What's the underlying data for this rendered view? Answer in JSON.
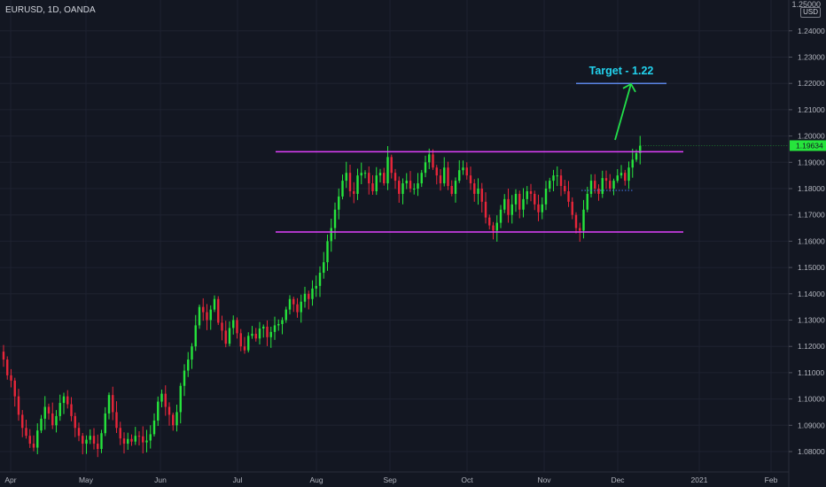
{
  "header": {
    "symbol": "EURUSD, 1D, OANDA"
  },
  "price_axis": {
    "top_value": "1.25000",
    "currency": "USD",
    "last_price": "1.19634"
  },
  "colors": {
    "background": "#131722",
    "up": "#26e43c",
    "down": "#e8263a",
    "range_line": "#e040fb",
    "target_line": "#5b86e5",
    "target_text": "#22d3ee",
    "arrow": "#22e04a",
    "grid": "#1e2230"
  },
  "annotation": {
    "target_label": "Target - 1.22",
    "target_price": 1.22
  },
  "chart_data": {
    "type": "candlestick",
    "title": "EURUSD, 1D, OANDA",
    "y_ticks": [
      "1.24000",
      "1.23000",
      "1.22000",
      "1.21000",
      "1.20000",
      "1.19000",
      "1.18000",
      "1.17000",
      "1.16000",
      "1.15000",
      "1.14000",
      "1.13000",
      "1.12000",
      "1.11000",
      "1.10000",
      "1.09000",
      "1.08000"
    ],
    "x_ticks": [
      "Apr",
      "May",
      "Jun",
      "Jul",
      "Aug",
      "Sep",
      "Oct",
      "Nov",
      "Dec",
      "2021",
      "Feb"
    ],
    "ylim": [
      1.0755,
      1.25
    ],
    "last_price": 1.19634,
    "resistance": 1.194,
    "support": 1.1635,
    "target": 1.22,
    "close": [
      1.115,
      1.109,
      1.107,
      1.101,
      1.094,
      1.089,
      1.086,
      1.083,
      1.0815,
      1.088,
      1.0925,
      1.097,
      1.0945,
      1.09,
      1.0935,
      1.0985,
      1.101,
      1.098,
      1.0935,
      1.089,
      1.086,
      1.083,
      1.0845,
      1.086,
      1.083,
      1.081,
      1.087,
      1.0945,
      1.1015,
      1.095,
      1.089,
      1.085,
      1.083,
      1.0848,
      1.0838,
      1.086,
      1.0858,
      1.0835,
      1.0842,
      1.0866,
      1.0918,
      1.099,
      1.102,
      1.097,
      1.094,
      1.09,
      1.095,
      1.105,
      1.1108,
      1.115,
      1.12,
      1.128,
      1.135,
      1.133,
      1.13,
      1.134,
      1.138,
      1.129,
      1.126,
      1.121,
      1.127,
      1.13,
      1.125,
      1.12,
      1.1185,
      1.124,
      1.1248,
      1.123,
      1.1268,
      1.1275,
      1.1235,
      1.1255,
      1.128,
      1.1285,
      1.13,
      1.134,
      1.138,
      1.136,
      1.133,
      1.137,
      1.14,
      1.138,
      1.142,
      1.143,
      1.148,
      1.152,
      1.16,
      1.165,
      1.172,
      1.177,
      1.183,
      1.186,
      1.179,
      1.178,
      1.185,
      1.186,
      1.186,
      1.182,
      1.179,
      1.185,
      1.186,
      1.182,
      1.192,
      1.186,
      1.183,
      1.178,
      1.182,
      1.183,
      1.18,
      1.18,
      1.182,
      1.186,
      1.19,
      1.193,
      1.188,
      1.185,
      1.182,
      1.188,
      1.181,
      1.178,
      1.183,
      1.187,
      1.188,
      1.185,
      1.182,
      1.178,
      1.18,
      1.175,
      1.169,
      1.166,
      1.164,
      1.167,
      1.172,
      1.176,
      1.17,
      1.174,
      1.178,
      1.172,
      1.176,
      1.179,
      1.178,
      1.174,
      1.171,
      1.174,
      1.18,
      1.183,
      1.185,
      1.185,
      1.181,
      1.179,
      1.175,
      1.17,
      1.165,
      1.164,
      1.172,
      1.178,
      1.183,
      1.18,
      1.178,
      1.184,
      1.183,
      1.18,
      1.183,
      1.185,
      1.186,
      1.183,
      1.188,
      1.191,
      1.1935,
      1.1963
    ]
  }
}
